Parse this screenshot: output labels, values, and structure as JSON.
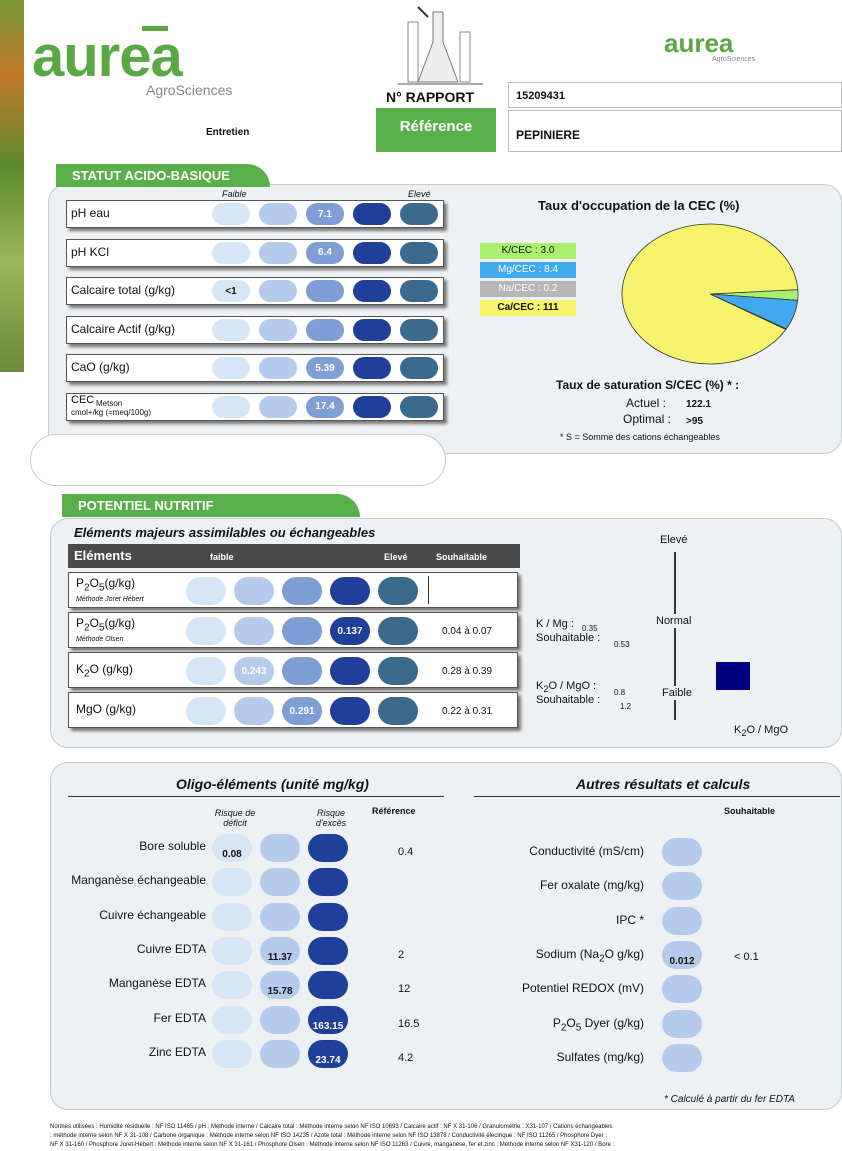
{
  "header": {
    "logo_text": "aurea",
    "logo_sub": "AgroSciences",
    "small_logo_text": "aurea",
    "small_logo_sub": "AgroSciences",
    "report_label": "N° RAPPORT",
    "report_number": "15209431",
    "reference_label": "Référence",
    "reference_value": "PEPINIERE",
    "entretien": "Entretien"
  },
  "acid": {
    "tab": "STATUT ACIDO-BASIQUE",
    "faible": "Faible",
    "eleve": "Elevé",
    "rows": [
      {
        "label": "pH eau",
        "value": "7.1"
      },
      {
        "label": "pH KCl",
        "value": "6.4"
      },
      {
        "label": "Calcaire total (g/kg)",
        "value": "<1"
      },
      {
        "label": "Calcaire Actif (g/kg)",
        "value": ""
      },
      {
        "label": "CaO (g/kg)",
        "value": "5.39"
      },
      {
        "label": "CEC",
        "sub": "Metson",
        "sub2": "cmol+/kg (=meq/100g)",
        "value": "17.4"
      }
    ],
    "cec_title": "Taux d'occupation de la CEC (%)",
    "legend": [
      {
        "label": "K/CEC : 3.0",
        "color": "#a8f06e"
      },
      {
        "label": "Mg/CEC : 8.4",
        "color": "#41a9f0"
      },
      {
        "label": "Na/CEC : 0.2",
        "color": "#b6b6b6"
      },
      {
        "label": "Ca/CEC : 111",
        "color": "#f7f36d"
      }
    ],
    "sat_title": "Taux de saturation S/CEC (%) * :",
    "actuel_label": "Actuel :",
    "actuel": "122.1",
    "optimal_label": "Optimal :",
    "optimal": ">95",
    "note": "* S = Somme des cations échangeables"
  },
  "chart_data": {
    "type": "pie",
    "title": "Taux d'occupation de la CEC (%)",
    "categories": [
      "K/CEC",
      "Mg/CEC",
      "Na/CEC",
      "Ca/CEC"
    ],
    "values": [
      3.0,
      8.4,
      0.2,
      111
    ],
    "colors": [
      "#a8f06e",
      "#41a9f0",
      "#b6b6b6",
      "#f7f36d"
    ]
  },
  "nutri": {
    "tab": "POTENTIEL NUTRITIF",
    "subtitle": "Eléments majeurs assimilables ou échangeables",
    "h_elements": "Eléments",
    "h_faible": "faible",
    "h_eleve": "Elevé",
    "h_souh": "Souhaitable",
    "r1": {
      "label": "P2O5(g/kg)",
      "method": "Méthode Joret Hébert",
      "value": "",
      "souh": ""
    },
    "r2": {
      "label": "P2O5(g/kg)",
      "method": "Méthode Olsen",
      "value": "0.137",
      "souh": "0.04 à 0.07"
    },
    "r3": {
      "label": "K2O (g/kg)",
      "value": "0.243",
      "souh": "0.28 à 0.39"
    },
    "r4": {
      "label": "MgO (g/kg)",
      "value": "0.291",
      "souh": "0.22 à 0.31"
    },
    "kmg_label": "K / Mg :",
    "kmg": "0.35",
    "kmg_souh_label": "Souhaitable :",
    "kmg_souh": "0.53",
    "k2o_label": "K2O / MgO :",
    "k2o": "0.8",
    "k2o_souh_label": "Souhaitable :",
    "k2o_souh": "1.2",
    "scale_eleve": "Elevé",
    "scale_normal": "Normal",
    "scale_faible": "Faible",
    "scale_axis": "K2O / MgO"
  },
  "oligo": {
    "title": "Oligo-éléments (unité mg/kg)",
    "risque_def": "Risque de déficit",
    "risque_exc": "Risque d'excès",
    "ref_h": "Référence",
    "rows": [
      {
        "label": "Bore soluble",
        "value": "0.08",
        "ref": "0.4"
      },
      {
        "label": "Manganèse échangeable",
        "value": "",
        "ref": ""
      },
      {
        "label": "Cuivre échangeable",
        "value": "",
        "ref": ""
      },
      {
        "label": "Cuivre EDTA",
        "value": "11.37",
        "ref": "2"
      },
      {
        "label": "Manganèse EDTA",
        "value": "15.78",
        "ref": "12"
      },
      {
        "label": "Fer EDTA",
        "value": "163.15",
        "ref": "16.5"
      },
      {
        "label": "Zinc EDTA",
        "value": "23.74",
        "ref": "4.2"
      }
    ]
  },
  "autres": {
    "title": "Autres résultats et calculs",
    "souh_h": "Souhaitable",
    "rows": [
      {
        "label": "Conductivité (mS/cm)",
        "value": "",
        "souh": ""
      },
      {
        "label": "Fer oxalate (mg/kg)",
        "value": "",
        "souh": ""
      },
      {
        "label": "IPC *",
        "value": "",
        "souh": ""
      },
      {
        "label": "Sodium (Na2O g/kg)",
        "value": "0.012",
        "souh": "< 0.1"
      },
      {
        "label": "Potentiel REDOX (mV)",
        "value": "",
        "souh": ""
      },
      {
        "label": "P2O5 Dyer (g/kg)",
        "value": "",
        "souh": ""
      },
      {
        "label": "Sulfates (mg/kg)",
        "value": "",
        "souh": ""
      }
    ],
    "note": "* Calculé à partir du fer EDTA"
  },
  "footer": {
    "line1": "Normes utilisées : Humidité résiduelle : NF ISO 11465 / pH : Méthode interne / Calcaire total : Méthode interne selon NF ISO 10693 / Calcaire actif : NF X 31-106 / Granulométrie : X31-107 / Cations échangeables",
    "line2": ": méthode interne selon NF X 31-108 / Carbone organique : Méthode interne selon NF ISO 14235 / Azote total : Méthode interne selon NF ISO 13878 / Conductivité électrique : NF ISO 11265 / Phosphore Dyer :",
    "line3": "NF X 31-160 / Phosphore Joret-Hébert : Méthode interne selon NF X 31-161 / Phosphore Olsen : Méthode interne selon NF ISO 11263 / Cuivre, manganèse, fer et zinc : Méthode interne selon NF X31-120 / Bore :"
  }
}
